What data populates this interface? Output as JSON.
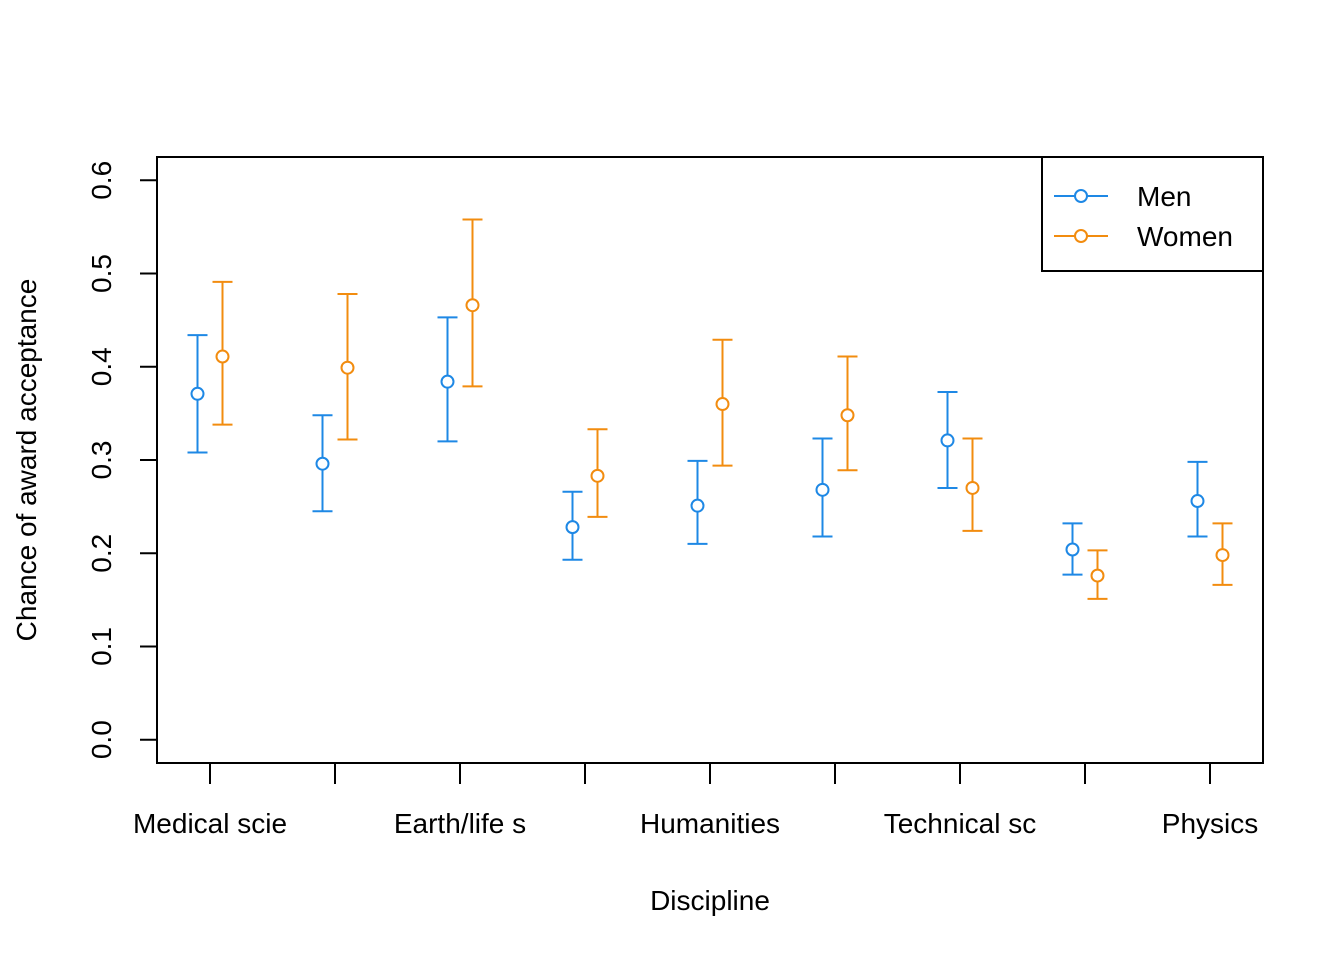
{
  "chart_data": {
    "type": "scatter",
    "xlabel": "Discipline",
    "ylabel": "Chance of award acceptance",
    "ylim": [
      -0.025,
      0.625
    ],
    "yticks": [
      "0.0",
      "0.1",
      "0.2",
      "0.3",
      "0.4",
      "0.5",
      "0.6"
    ],
    "xtick_labels": [
      "Medical scie",
      "Earth/life s",
      "Humanities",
      "Technical sc",
      "Physics"
    ],
    "categories": [
      "Medical scie",
      "",
      "Earth/life s",
      "",
      "Humanities",
      "",
      "Technical sc",
      "",
      "Physics"
    ],
    "legend_position": "top-right",
    "grid": false,
    "series": [
      {
        "name": "Men",
        "color": "#1E88E5",
        "values": [
          0.371,
          0.296,
          0.384,
          0.228,
          0.251,
          0.268,
          0.321,
          0.204,
          0.256
        ],
        "lower": [
          0.308,
          0.245,
          0.32,
          0.193,
          0.21,
          0.218,
          0.27,
          0.177,
          0.218
        ],
        "upper": [
          0.434,
          0.348,
          0.453,
          0.266,
          0.299,
          0.323,
          0.373,
          0.232,
          0.298
        ]
      },
      {
        "name": "Women",
        "color": "#F28C0F",
        "values": [
          0.411,
          0.399,
          0.466,
          0.283,
          0.36,
          0.348,
          0.27,
          0.176,
          0.198
        ],
        "lower": [
          0.338,
          0.322,
          0.379,
          0.239,
          0.294,
          0.289,
          0.224,
          0.151,
          0.166
        ],
        "upper": [
          0.491,
          0.478,
          0.558,
          0.333,
          0.429,
          0.411,
          0.323,
          0.203,
          0.232
        ]
      }
    ]
  }
}
